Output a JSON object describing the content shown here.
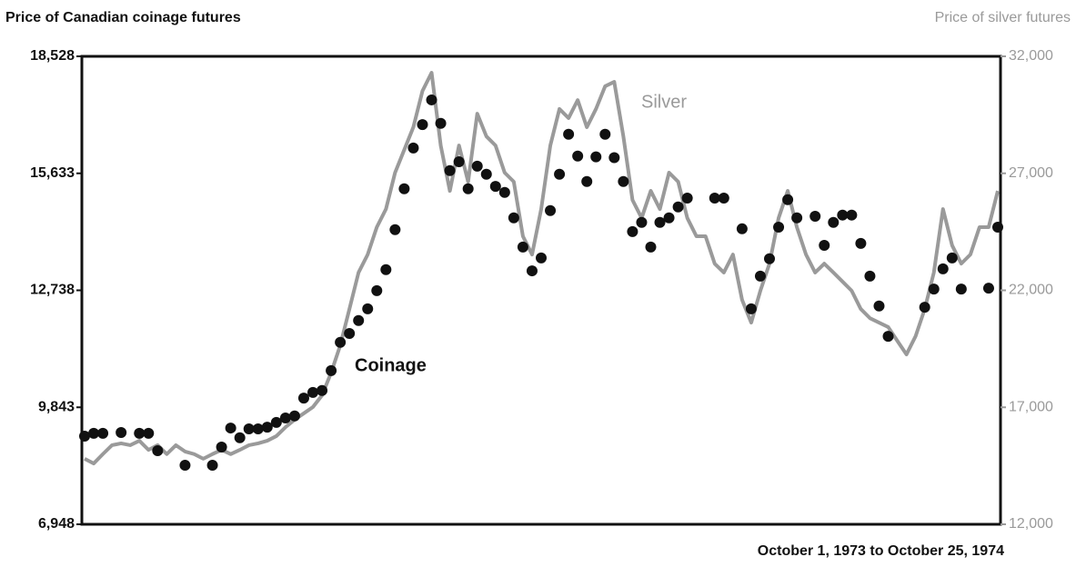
{
  "chart_data": {
    "type": "line",
    "title": "Price of Canadian coinage futures",
    "y2_label": "Price of silver futures",
    "x_label": "October 1, 1973 to October 25, 1974",
    "annotations": [
      "Silver",
      "Coinage"
    ],
    "ylim": [
      6948,
      18528
    ],
    "yticks": [
      {
        "value": 6948,
        "label": "6,948"
      },
      {
        "value": 9843,
        "label": "9,843"
      },
      {
        "value": 12738,
        "label": "12,738"
      },
      {
        "value": 15633,
        "label": "15,633"
      },
      {
        "value": 18528,
        "label": "18,528"
      }
    ],
    "y2lim": [
      12000,
      32000
    ],
    "y2ticks": [
      {
        "value": 12000,
        "label": "12,000"
      },
      {
        "value": 17000,
        "label": "17,000"
      },
      {
        "value": 22000,
        "label": "22,000"
      },
      {
        "value": 27000,
        "label": "27,000"
      },
      {
        "value": 32000,
        "label": "32,000"
      }
    ],
    "series": [
      {
        "name": "Silver",
        "color": "#9a9a9a",
        "axis": "y2",
        "style": "line",
        "values": [
          14800,
          14600,
          15000,
          15380,
          15460,
          15380,
          15570,
          15180,
          15380,
          15000,
          15380,
          15110,
          15000,
          14800,
          15000,
          15180,
          15000,
          15180,
          15380,
          15460,
          15570,
          15770,
          16150,
          16470,
          16740,
          17010,
          17510,
          18480,
          19650,
          21200,
          22760,
          23530,
          24700,
          25470,
          27030,
          28000,
          28970,
          30520,
          31300,
          28190,
          26250,
          28190,
          26640,
          29550,
          28580,
          28190,
          27030,
          26640,
          24310,
          23530,
          25470,
          28190,
          29750,
          29360,
          30130,
          28970,
          29750,
          30720,
          30910,
          28580,
          25860,
          25090,
          26250,
          25470,
          27030,
          26640,
          25090,
          24310,
          24310,
          23140,
          22760,
          23530,
          21590,
          20620,
          21980,
          23140,
          25090,
          26250,
          24700,
          23530,
          22760,
          23140,
          22760,
          22370,
          21980,
          21200,
          20810,
          20620,
          20430,
          19840,
          19260,
          20040,
          21200,
          22760,
          25470,
          23920,
          23140,
          23530,
          24700,
          24700,
          26250
        ]
      },
      {
        "name": "Coinage",
        "color": "#111111",
        "axis": "y",
        "style": "dots",
        "values": [
          9130,
          9200,
          9200,
          null,
          9220,
          null,
          9200,
          9200,
          8770,
          null,
          null,
          8410,
          null,
          null,
          8410,
          8860,
          9330,
          9090,
          9310,
          9310,
          9350,
          9470,
          9580,
          9630,
          10070,
          10210,
          10260,
          10750,
          11450,
          11670,
          11990,
          12280,
          12730,
          13250,
          14240,
          15250,
          16260,
          16840,
          17450,
          16870,
          15700,
          15920,
          15250,
          15810,
          15610,
          15310,
          15160,
          14530,
          13810,
          13220,
          13540,
          14710,
          15610,
          16600,
          16060,
          15430,
          16040,
          16600,
          16020,
          15430,
          14190,
          14420,
          13810,
          14420,
          14530,
          14800,
          15020,
          null,
          null,
          15020,
          15020,
          null,
          14260,
          12280,
          13090,
          13520,
          14300,
          14980,
          14530,
          null,
          14570,
          13850,
          14420,
          14600,
          14600,
          13900,
          13090,
          12350,
          11600,
          null,
          null,
          null,
          12320,
          12770,
          13270,
          13540,
          12770,
          null,
          null,
          12790,
          14300
        ]
      }
    ]
  }
}
